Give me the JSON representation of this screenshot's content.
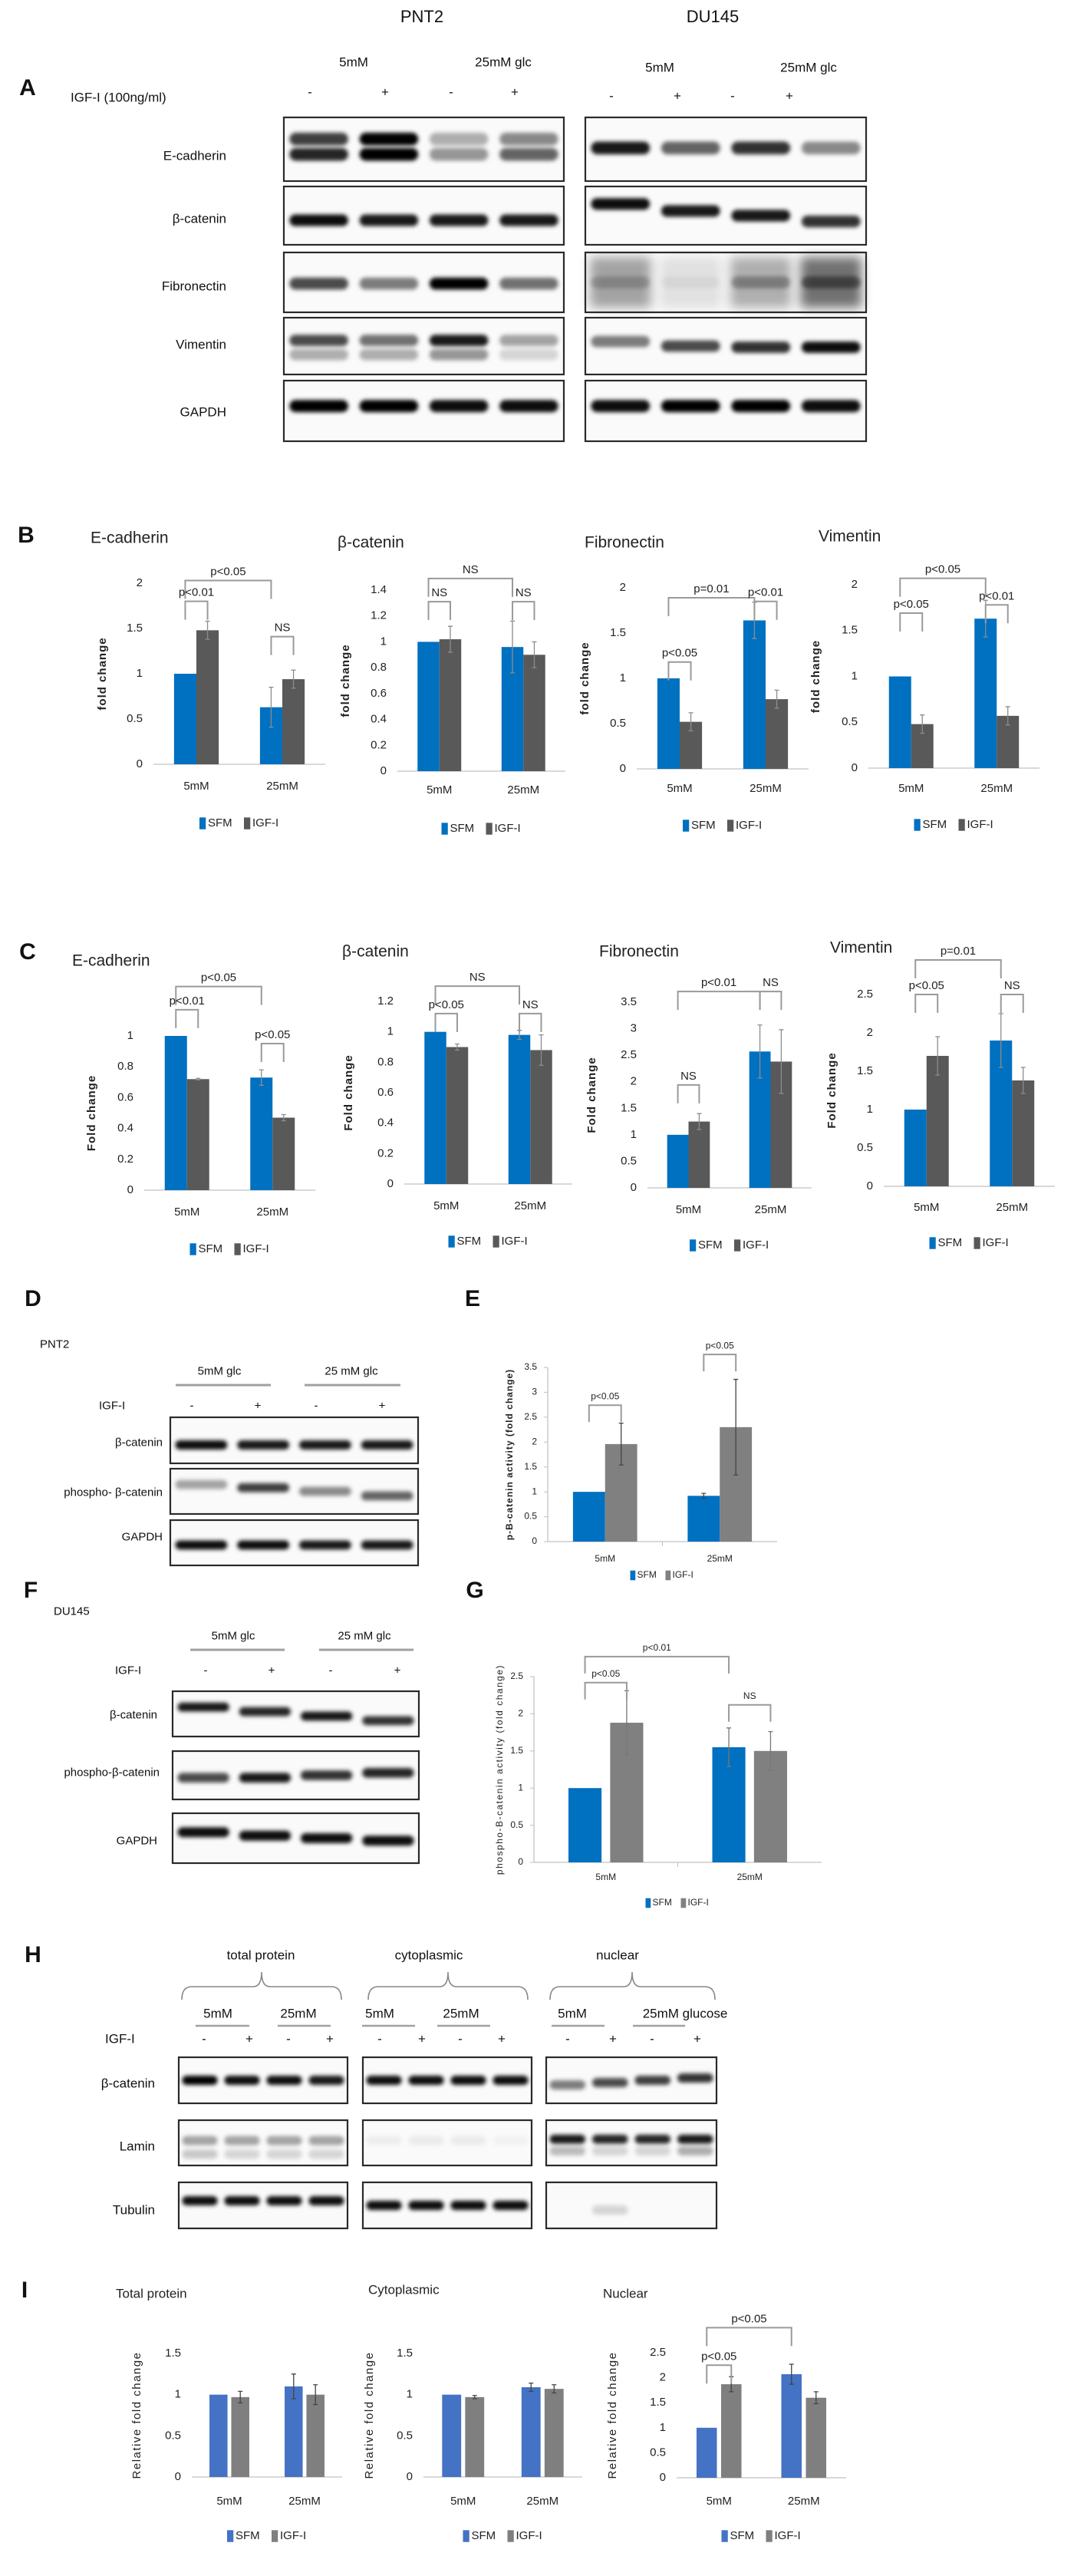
{
  "panels": {
    "A": {
      "letter": "A",
      "cell_lines": [
        "PNT2",
        "DU145"
      ],
      "glucose_labels": [
        [
          "5mM",
          "25mM glc"
        ],
        [
          "5mM",
          "25mM glc"
        ]
      ],
      "treatment_label": "IGF-I (100ng/ml)",
      "signs": [
        "-",
        "+",
        "-",
        "+"
      ],
      "rows": [
        "E-cadherin",
        "β-catenin",
        "Fibronectin",
        "Vimentin",
        "GAPDH"
      ]
    },
    "B": {
      "letter": "B"
    },
    "C": {
      "letter": "C"
    },
    "D": {
      "letter": "D",
      "cell_line": "PNT2",
      "glucose_labels": [
        "5mM glc",
        "25 mM glc"
      ],
      "treatment_label": "IGF-I",
      "signs": [
        "-",
        "+",
        "-",
        "+"
      ],
      "rows": [
        "β-catenin",
        "phospho- β-catenin",
        "GAPDH"
      ]
    },
    "E": {
      "letter": "E"
    },
    "F": {
      "letter": "F",
      "cell_line": "DU145",
      "glucose_labels": [
        "5mM glc",
        "25 mM glc"
      ],
      "treatment_label": "IGF-I",
      "signs": [
        "-",
        "+",
        "-",
        "+"
      ],
      "rows": [
        "β-catenin",
        "phospho-β-catenin",
        "GAPDH"
      ]
    },
    "G": {
      "letter": "G"
    },
    "H": {
      "letter": "H",
      "fractions": [
        "total protein",
        "cytoplasmic",
        "nuclear"
      ],
      "glucose_labels": [
        "5mM",
        "25mM",
        "5mM",
        "25mM",
        "5mM",
        "25mM glucose"
      ],
      "treatment_label": "IGF-I",
      "signs": [
        "-",
        "+",
        "-",
        "+",
        "-",
        "+",
        "-",
        "+",
        "-",
        "+",
        "-",
        "+"
      ],
      "rows": [
        "β-catenin",
        "Lamin",
        "Tubulin"
      ]
    },
    "I": {
      "letter": "I"
    }
  },
  "chart_data": [
    {
      "panel": "B",
      "type": "bar",
      "title": "E-cadherin",
      "ylabel": "fold change",
      "categories": [
        "5mM",
        "25mM"
      ],
      "ylim": [
        0,
        2
      ],
      "yticks": [
        "0",
        "0.5",
        "1",
        "1.5",
        "2"
      ],
      "legend": "bottom",
      "grid": false,
      "series": [
        {
          "name": "SFM",
          "values": [
            1,
            0.63
          ],
          "errors": [
            0,
            0.22
          ],
          "color": "#0070C0"
        },
        {
          "name": "IGF-I",
          "values": [
            1.48,
            0.94
          ],
          "errors": [
            0.1,
            0.1
          ],
          "color": "#595959"
        }
      ],
      "annotations": [
        {
          "label": "p<0.05",
          "from": [
            0,
            0
          ],
          "to": [
            1,
            0
          ],
          "y": 2.03
        },
        {
          "label": "p<0.01",
          "from": [
            0,
            0
          ],
          "to": [
            0,
            1
          ],
          "y": 1.8
        },
        {
          "label": "NS",
          "from": [
            1,
            0
          ],
          "to": [
            1,
            1
          ],
          "y": 1.41
        }
      ]
    },
    {
      "panel": "B",
      "type": "bar",
      "title": "β-catenin",
      "ylabel": "fold change",
      "categories": [
        "5mM",
        "25mM"
      ],
      "ylim": [
        0,
        1.4
      ],
      "yticks": [
        "0",
        "0.2",
        "0.4",
        "0.6",
        "0.8",
        "1",
        "1.2",
        "1.4"
      ],
      "legend": "bottom",
      "grid": false,
      "series": [
        {
          "name": "SFM",
          "values": [
            1,
            0.96
          ],
          "errors": [
            0,
            0.2
          ],
          "color": "#0070C0"
        },
        {
          "name": "IGF-I",
          "values": [
            1.02,
            0.9
          ],
          "errors": [
            0.1,
            0.1
          ],
          "color": "#595959"
        }
      ],
      "annotations": [
        {
          "label": "NS",
          "from": [
            0,
            0
          ],
          "to": [
            1,
            0
          ],
          "y": 1.49
        },
        {
          "label": "NS",
          "from": [
            0,
            0
          ],
          "to": [
            0,
            1
          ],
          "y": 1.31
        },
        {
          "label": "NS",
          "from": [
            1,
            0
          ],
          "to": [
            1,
            1
          ],
          "y": 1.31
        }
      ]
    },
    {
      "panel": "B",
      "type": "bar",
      "title": "Fibronectin",
      "ylabel": "fold change",
      "categories": [
        "5mM",
        "25mM"
      ],
      "ylim": [
        0,
        2
      ],
      "yticks": [
        "0",
        "0.5",
        "1",
        "1.5",
        "2"
      ],
      "legend": "bottom",
      "grid": false,
      "series": [
        {
          "name": "SFM",
          "values": [
            1,
            1.64
          ],
          "errors": [
            0,
            0.2
          ],
          "color": "#0070C0"
        },
        {
          "name": "IGF-I",
          "values": [
            0.52,
            0.77
          ],
          "errors": [
            0.1,
            0.1
          ],
          "color": "#595959"
        }
      ],
      "annotations": [
        {
          "label": "p=0.01",
          "from": [
            0,
            0
          ],
          "to": [
            1,
            0
          ],
          "y": 1.89
        },
        {
          "label": "p<0.01",
          "from": [
            1,
            0
          ],
          "to": [
            1,
            1
          ],
          "y": 1.85
        },
        {
          "label": "p<0.05",
          "from": [
            0,
            0
          ],
          "to": [
            0,
            1
          ],
          "y": 1.18
        }
      ]
    },
    {
      "panel": "B",
      "type": "bar",
      "title": "Vimentin",
      "ylabel": "fold change",
      "categories": [
        "5mM",
        "25mM"
      ],
      "ylim": [
        0,
        2
      ],
      "yticks": [
        "0",
        "0.5",
        "1",
        "1.5",
        "2"
      ],
      "legend": "bottom",
      "grid": false,
      "series": [
        {
          "name": "SFM",
          "values": [
            1,
            1.63
          ],
          "errors": [
            0,
            0.2
          ],
          "color": "#0070C0"
        },
        {
          "name": "IGF-I",
          "values": [
            0.48,
            0.57
          ],
          "errors": [
            0.1,
            0.1
          ],
          "color": "#595959"
        }
      ],
      "annotations": [
        {
          "label": "p<0.05",
          "from": [
            0,
            0
          ],
          "to": [
            1,
            0
          ],
          "y": 2.07
        },
        {
          "label": "p<0.05",
          "from": [
            0,
            0
          ],
          "to": [
            0,
            1
          ],
          "y": 1.69
        },
        {
          "label": "p<0.01",
          "from": [
            1,
            0
          ],
          "to": [
            1,
            1
          ],
          "y": 1.78
        }
      ]
    },
    {
      "panel": "C",
      "type": "bar",
      "title": "E-cadherin",
      "ylabel": "Fold change",
      "categories": [
        "5mM",
        "25mM"
      ],
      "ylim": [
        0,
        1
      ],
      "yticks": [
        "0",
        "0.2",
        "0.4",
        "0.6",
        "0.8",
        "1"
      ],
      "legend": "bottom",
      "grid": false,
      "series": [
        {
          "name": "SFM",
          "values": [
            1,
            0.73
          ],
          "errors": [
            0,
            0.05
          ],
          "color": "#0070C0"
        },
        {
          "name": "IGF-I",
          "values": [
            0.72,
            0.47
          ],
          "errors": [
            0.005,
            0.02
          ],
          "color": "#595959"
        }
      ],
      "annotations": [
        {
          "label": "p<0.05",
          "from": [
            0,
            0
          ],
          "to": [
            1,
            0
          ],
          "y": 1.32
        },
        {
          "label": "p<0.01",
          "from": [
            0,
            0
          ],
          "to": [
            0,
            1
          ],
          "y": 1.17
        },
        {
          "label": "p<0.05",
          "from": [
            1,
            0
          ],
          "to": [
            1,
            1
          ],
          "y": 0.95
        }
      ]
    },
    {
      "panel": "C",
      "type": "bar",
      "title": "β-catenin",
      "ylabel": "Fold change",
      "categories": [
        "5mM",
        "25mM"
      ],
      "ylim": [
        0,
        1.2
      ],
      "yticks": [
        "0",
        "0.2",
        "0.4",
        "0.6",
        "0.8",
        "1",
        "1.2"
      ],
      "legend": "bottom",
      "grid": false,
      "series": [
        {
          "name": "SFM",
          "values": [
            1,
            0.98
          ],
          "errors": [
            0,
            0.03
          ],
          "color": "#0070C0"
        },
        {
          "name": "IGF-I",
          "values": [
            0.9,
            0.88
          ],
          "errors": [
            0.02,
            0.1
          ],
          "color": "#595959"
        }
      ],
      "annotations": [
        {
          "label": "NS",
          "from": [
            0,
            0
          ],
          "to": [
            1,
            0
          ],
          "y": 1.3
        },
        {
          "label": "p<0.05",
          "from": [
            0,
            0
          ],
          "to": [
            0,
            1
          ],
          "y": 1.12
        },
        {
          "label": "NS",
          "from": [
            1,
            0
          ],
          "to": [
            1,
            1
          ],
          "y": 1.12
        }
      ]
    },
    {
      "panel": "C",
      "type": "bar",
      "title": "Fibronectin",
      "ylabel": "Fold change",
      "categories": [
        "5mM",
        "25mM"
      ],
      "ylim": [
        0,
        3.5
      ],
      "yticks": [
        "0",
        "0.5",
        "1",
        "1.5",
        "2",
        "2.5",
        "3",
        "3.5"
      ],
      "legend": "bottom",
      "grid": false,
      "series": [
        {
          "name": "SFM",
          "values": [
            1,
            2.57
          ],
          "errors": [
            0,
            0.5
          ],
          "color": "#0070C0"
        },
        {
          "name": "IGF-I",
          "values": [
            1.25,
            2.38
          ],
          "errors": [
            0.15,
            0.6
          ],
          "color": "#595959"
        }
      ],
      "annotations": [
        {
          "label": "NS",
          "from": [
            0,
            0
          ],
          "to": [
            0,
            1
          ],
          "y": 1.94
        },
        {
          "label": "p<0.01",
          "from": [
            0,
            0
          ],
          "to": [
            1,
            0
          ],
          "y": 3.7
        },
        {
          "label": "NS",
          "from": [
            1,
            0
          ],
          "to": [
            1,
            1
          ],
          "y": 3.7
        }
      ]
    },
    {
      "panel": "C",
      "type": "bar",
      "title": "Vimentin",
      "ylabel": "Fold change",
      "categories": [
        "5mM",
        "25mM"
      ],
      "ylim": [
        0,
        2.5
      ],
      "yticks": [
        "0",
        "0.5",
        "1",
        "1.5",
        "2",
        "2.5"
      ],
      "legend": "bottom",
      "grid": false,
      "series": [
        {
          "name": "SFM",
          "values": [
            1,
            1.9
          ],
          "errors": [
            0,
            0.35
          ],
          "color": "#0070C0"
        },
        {
          "name": "IGF-I",
          "values": [
            1.7,
            1.38
          ],
          "errors": [
            0.25,
            0.17
          ],
          "color": "#595959"
        }
      ],
      "annotations": [
        {
          "label": "p=0.01",
          "from": [
            0,
            0
          ],
          "to": [
            1,
            0
          ],
          "y": 2.95
        },
        {
          "label": "p<0.05",
          "from": [
            0,
            0
          ],
          "to": [
            0,
            1
          ],
          "y": 2.5
        },
        {
          "label": "NS",
          "from": [
            1,
            0
          ],
          "to": [
            1,
            1
          ],
          "y": 2.5
        }
      ]
    },
    {
      "panel": "E",
      "type": "bar",
      "title": "",
      "ylabel": "p-B-catenin activity (fold change)",
      "categories": [
        "5mM",
        "25mM"
      ],
      "ylim": [
        0,
        3.5
      ],
      "yticks": [
        "0",
        "0.5",
        "1",
        "1.5",
        "2",
        "2.5",
        "3",
        "3.5"
      ],
      "legend": "bottom",
      "grid": false,
      "series": [
        {
          "name": "SFM",
          "values": [
            1,
            0.92
          ],
          "errors": [
            0,
            0.05
          ],
          "color": "#0070C0"
        },
        {
          "name": "IGF-I",
          "values": [
            1.96,
            2.3
          ],
          "errors": [
            0.42,
            0.96
          ],
          "color": "#808080"
        }
      ],
      "annotations": [
        {
          "label": "p<0.05",
          "from": [
            0,
            0
          ],
          "to": [
            0,
            1
          ],
          "y": 2.74
        },
        {
          "label": "p<0.05",
          "from": [
            1,
            0
          ],
          "to": [
            1,
            1
          ],
          "y": 3.76
        }
      ]
    },
    {
      "panel": "G",
      "type": "bar",
      "title": "",
      "ylabel": "phospho-B-catenin activity (fold change)",
      "categories": [
        "5mM",
        "25mM"
      ],
      "ylim": [
        0,
        2.5
      ],
      "yticks": [
        "0",
        "0.5",
        "1",
        "1.5",
        "2",
        "2.5"
      ],
      "legend": "bottom",
      "grid": false,
      "series": [
        {
          "name": "SFM",
          "values": [
            1,
            1.55
          ],
          "errors": [
            0,
            0.26
          ],
          "color": "#0070C0"
        },
        {
          "name": "IGF-I",
          "values": [
            1.88,
            1.5
          ],
          "errors": [
            0.43,
            0.26
          ],
          "color": "#808080"
        }
      ],
      "annotations": [
        {
          "label": "p<0.01",
          "from": [
            0,
            0
          ],
          "to": [
            1,
            0
          ],
          "y": 2.77
        },
        {
          "label": "p<0.05",
          "from": [
            0,
            0
          ],
          "to": [
            0,
            1
          ],
          "y": 2.42
        },
        {
          "label": "NS",
          "from": [
            1,
            0
          ],
          "to": [
            1,
            1
          ],
          "y": 2.12
        }
      ]
    },
    {
      "panel": "I",
      "type": "bar",
      "title": "Total protein",
      "ylabel": "Relative fold change",
      "categories": [
        "5mM",
        "25mM"
      ],
      "ylim": [
        0,
        1.5
      ],
      "yticks": [
        "0",
        "0.5",
        "1",
        "1.5"
      ],
      "legend": "bottom",
      "grid": false,
      "series": [
        {
          "name": "SFM",
          "values": [
            1,
            1.1
          ],
          "errors": [
            0,
            0.15
          ],
          "color": "#4472C4"
        },
        {
          "name": "IGF-I",
          "values": [
            0.97,
            1.0
          ],
          "errors": [
            0.07,
            0.12
          ],
          "color": "#7F7F7F"
        }
      ],
      "annotations": []
    },
    {
      "panel": "I",
      "type": "bar",
      "title": "Cytoplasmic",
      "ylabel": "Relative fold change",
      "categories": [
        "5mM",
        "25mM"
      ],
      "ylim": [
        0,
        1.5
      ],
      "yticks": [
        "0",
        "0.5",
        "1",
        "1.5"
      ],
      "legend": "bottom",
      "grid": false,
      "series": [
        {
          "name": "SFM",
          "values": [
            1,
            1.09
          ],
          "errors": [
            0,
            0.05
          ],
          "color": "#4472C4"
        },
        {
          "name": "IGF-I",
          "values": [
            0.97,
            1.07
          ],
          "errors": [
            0.02,
            0.05
          ],
          "color": "#7F7F7F"
        }
      ],
      "annotations": []
    },
    {
      "panel": "I",
      "type": "bar",
      "title": "Nuclear",
      "ylabel": "Relative fold change",
      "categories": [
        "5mM",
        "25mM"
      ],
      "ylim": [
        0,
        2.5
      ],
      "yticks": [
        "0",
        "0.5",
        "1",
        "1.5",
        "2",
        "2.5"
      ],
      "legend": "bottom",
      "grid": false,
      "series": [
        {
          "name": "SFM",
          "values": [
            1,
            2.07
          ],
          "errors": [
            0,
            0.2
          ],
          "color": "#4472C4"
        },
        {
          "name": "IGF-I",
          "values": [
            1.87,
            1.6
          ],
          "errors": [
            0.15,
            0.12
          ],
          "color": "#7F7F7F"
        }
      ],
      "annotations": [
        {
          "label": "p<0.05",
          "from": [
            0,
            0
          ],
          "to": [
            0,
            1
          ],
          "y": 2.25
        },
        {
          "label": "p<0.05",
          "from": [
            0,
            0
          ],
          "to": [
            1,
            0
          ],
          "y": 3.0
        }
      ]
    }
  ]
}
